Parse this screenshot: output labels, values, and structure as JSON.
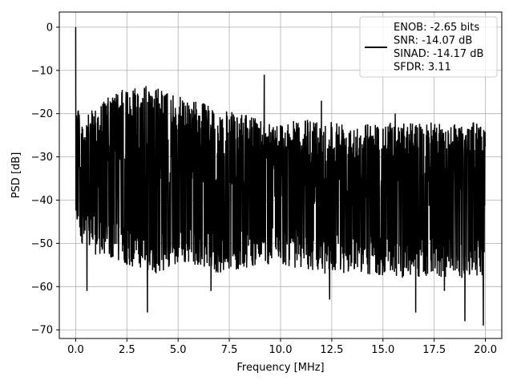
{
  "chart_data": {
    "type": "line",
    "xlabel": "Frequency [MHz]",
    "ylabel": "PSD [dB]",
    "xlim": [
      -0.8,
      20.8
    ],
    "ylim": [
      -72,
      3.5
    ],
    "xticks": [
      0.0,
      2.5,
      5.0,
      7.5,
      10.0,
      12.5,
      15.0,
      17.5,
      20.0
    ],
    "xtick_labels": [
      "0.0",
      "2.5",
      "5.0",
      "7.5",
      "10.0",
      "12.5",
      "15.0",
      "17.5",
      "20.0"
    ],
    "yticks": [
      0,
      -10,
      -20,
      -30,
      -40,
      -50,
      -60,
      -70
    ],
    "ytick_labels": [
      "0",
      "−10",
      "−20",
      "−30",
      "−40",
      "−50",
      "−60",
      "−70"
    ],
    "grid": true,
    "legend": {
      "placement": "top-right",
      "lines": [
        "ENOB: -2.65 bits",
        "SNR: -14.07 dB",
        "SINAD: -14.17 dB",
        "SFDR: 3.11"
      ]
    },
    "series": [
      {
        "color": "#000000",
        "x_range": [
          0.0,
          20.0
        ],
        "points": 2000,
        "dc_peak_db": 0,
        "noise_envelope": {
          "x": [
            0.0,
            0.3,
            1.0,
            2.0,
            3.0,
            4.0,
            5.0,
            6.0,
            7.0,
            8.0,
            9.0,
            10.0,
            12.0,
            14.0,
            16.0,
            18.0,
            20.0
          ],
          "upper": [
            -12,
            -22,
            -18,
            -15,
            -13,
            -14,
            -16,
            -17,
            -19,
            -20,
            -21,
            -22,
            -21,
            -22,
            -22,
            -22,
            -22
          ],
          "lower": [
            -45,
            -50,
            -53,
            -54,
            -56,
            -57,
            -55,
            -55,
            -57,
            -56,
            -55,
            -55,
            -57,
            -57,
            -58,
            -58,
            -58
          ]
        },
        "spikes": [
          {
            "x": 0.55,
            "y": -61
          },
          {
            "x": 3.5,
            "y": -66
          },
          {
            "x": 6.6,
            "y": -61
          },
          {
            "x": 9.2,
            "y": -11
          },
          {
            "x": 12.4,
            "y": -63
          },
          {
            "x": 16.6,
            "y": -66
          },
          {
            "x": 18.0,
            "y": -61
          },
          {
            "x": 19.0,
            "y": -68
          },
          {
            "x": 19.9,
            "y": -69
          },
          {
            "x": 15.6,
            "y": -20
          },
          {
            "x": 12.0,
            "y": -17
          }
        ]
      }
    ]
  }
}
